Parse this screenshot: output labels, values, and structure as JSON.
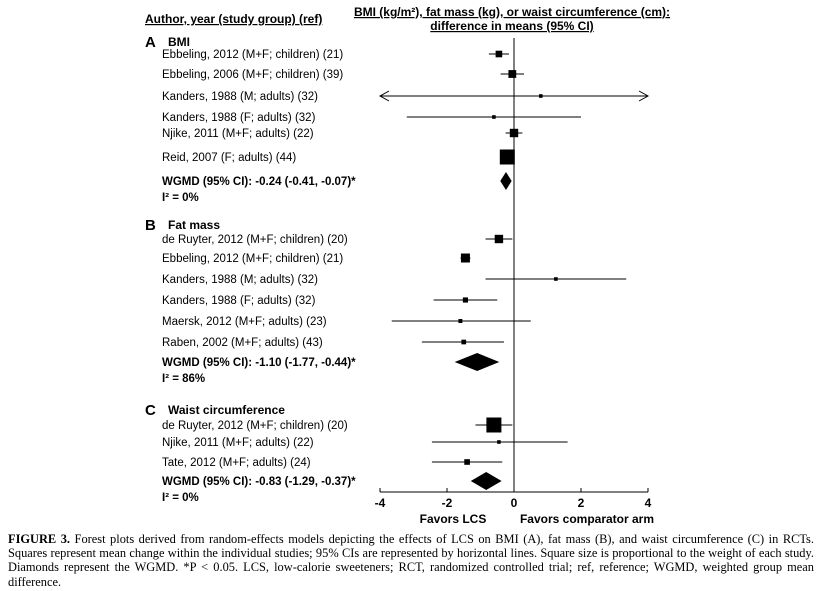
{
  "header": {
    "left_label": "Author, year (study group) (ref)",
    "right_line1": "BMI (kg/m²), fat mass (kg), or waist circumference (cm):",
    "right_line2": "difference in means (95% CI)"
  },
  "axis": {
    "xlim": [
      -4,
      4
    ],
    "ticks": [
      "-4",
      "-2",
      "0",
      "2",
      "4"
    ],
    "left_label": "Favors LCS",
    "right_label": "Favors comparator arm"
  },
  "caption": {
    "label": "FIGURE 3.",
    "text": " Forest plots derived from random-effects models depicting the effects of LCS on BMI (A), fat mass (B), and waist circumference (C) in RCTs. Squares represent mean change within the individual studies; 95% CIs are represented by horizontal lines. Square size is proportional to the weight of each study. Diamonds represent the WGMD. *P < 0.05. LCS, low-calorie sweeteners; RCT, randomized controlled trial; ref, reference; WGMD, weighted group mean difference."
  },
  "chart_data": {
    "type": "forest",
    "xlim": [
      -4,
      4
    ],
    "sections": [
      {
        "letter": "A",
        "title": "BMI",
        "studies": [
          {
            "label": "Ebbeling, 2012 (M+F; children) (21)",
            "est": -0.45,
            "lo": -0.75,
            "hi": -0.15,
            "weight": 0.3
          },
          {
            "label": "Ebbeling, 2006 (M+F; children) (39)",
            "est": -0.05,
            "lo": -0.4,
            "hi": 0.3,
            "weight": 0.4
          },
          {
            "label": "Kanders, 1988 (M; adults) (32)",
            "est": 0.8,
            "lo": -4,
            "hi": 4,
            "weight": 0.05,
            "arrows": true
          },
          {
            "label": "Kanders, 1988 (F; adults) (32)",
            "est": -0.6,
            "lo": -3.2,
            "hi": 2.0,
            "weight": 0.05
          },
          {
            "label": "Njike, 2011 (M+F; adults) (22)",
            "est": 0.0,
            "lo": -0.25,
            "hi": 0.25,
            "weight": 0.45
          },
          {
            "label": "Reid, 2007 (F; adults) (44)",
            "est": -0.2,
            "lo": -0.35,
            "hi": -0.05,
            "weight": 1.0
          }
        ],
        "pooled": {
          "label": "WGMD (95% CI): -0.24 (-0.41, -0.07)*",
          "est": -0.24,
          "lo": -0.41,
          "hi": -0.07
        },
        "i2": "I² = 0%"
      },
      {
        "letter": "B",
        "title": "Fat mass",
        "studies": [
          {
            "label": "de Ruyter, 2012 (M+F; children) (20)",
            "est": -0.45,
            "lo": -0.85,
            "hi": -0.05,
            "weight": 0.45
          },
          {
            "label": "Ebbeling, 2012 (M+F; children) (21)",
            "est": -1.45,
            "lo": -1.6,
            "hi": -1.3,
            "weight": 0.5
          },
          {
            "label": "Kanders, 1988 (M; adults) (32)",
            "est": 1.25,
            "lo": -0.85,
            "hi": 3.35,
            "weight": 0.05
          },
          {
            "label": "Kanders, 1988 (F; adults) (32)",
            "est": -1.45,
            "lo": -2.4,
            "hi": -0.5,
            "weight": 0.18
          },
          {
            "label": "Maersk, 2012 (M+F; adults) (23)",
            "est": -1.6,
            "lo": -3.65,
            "hi": 0.5,
            "weight": 0.08
          },
          {
            "label": "Raben, 2002 (M+F; adults) (43)",
            "est": -1.5,
            "lo": -2.75,
            "hi": -0.3,
            "weight": 0.14
          }
        ],
        "pooled": {
          "label": "WGMD (95% CI): -1.10 (-1.77, -0.44)*",
          "est": -1.1,
          "lo": -1.77,
          "hi": -0.44
        },
        "i2": "I² = 86%"
      },
      {
        "letter": "C",
        "title": "Waist circumference",
        "studies": [
          {
            "label": "de Ruyter, 2012 (M+F; children) (20)",
            "est": -0.6,
            "lo": -1.15,
            "hi": -0.05,
            "weight": 1.0
          },
          {
            "label": "Njike, 2011 (M+F; adults) (22)",
            "est": -0.45,
            "lo": -2.45,
            "hi": 1.6,
            "weight": 0.05
          },
          {
            "label": "Tate, 2012 (M+F; adults) (24)",
            "est": -1.4,
            "lo": -2.45,
            "hi": -0.35,
            "weight": 0.22
          }
        ],
        "pooled": {
          "label": "WGMD (95% CI): -0.83 (-1.29, -0.37)*",
          "est": -0.83,
          "lo": -1.29,
          "hi": -0.37
        },
        "i2": "I² = 0%"
      }
    ]
  }
}
